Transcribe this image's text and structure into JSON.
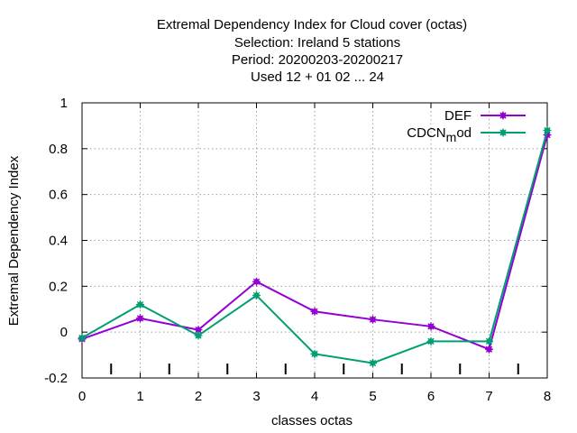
{
  "chart_data": {
    "type": "line",
    "title_lines": [
      "Extremal Dependency Index  for Cloud cover (octas)",
      "Selection: Ireland      5 stations",
      "Period: 20200203-20200217",
      "Used  12 + 01 02 ... 24"
    ],
    "xlabel": "classes octas",
    "ylabel": "Extremal Dependency Index",
    "x": [
      0,
      1,
      2,
      3,
      4,
      5,
      6,
      7,
      8
    ],
    "xlim": [
      0,
      8
    ],
    "ylim": [
      -0.2,
      1
    ],
    "x_ticks": [
      "0",
      "1",
      "2",
      "3",
      "4",
      "5",
      "6",
      "7",
      "8"
    ],
    "y_ticks": [
      "-0.2",
      "0",
      "0.2",
      "0.4",
      "0.6",
      "0.8",
      "1"
    ],
    "y_tick_values": [
      -0.2,
      0,
      0.2,
      0.4,
      0.6,
      0.8,
      1
    ],
    "grid": true,
    "legend_position": "top-right",
    "series": [
      {
        "name": "DEF",
        "color": "#9400d3",
        "values": [
          -0.03,
          0.06,
          0.01,
          0.22,
          0.09,
          0.055,
          0.025,
          -0.075,
          0.86
        ]
      },
      {
        "name": "CDCN",
        "name_subscript": "m",
        "name_suffix": "od",
        "color": "#009e73",
        "values": [
          -0.025,
          0.12,
          -0.015,
          0.16,
          -0.095,
          -0.135,
          -0.04,
          -0.04,
          0.88
        ]
      }
    ]
  }
}
